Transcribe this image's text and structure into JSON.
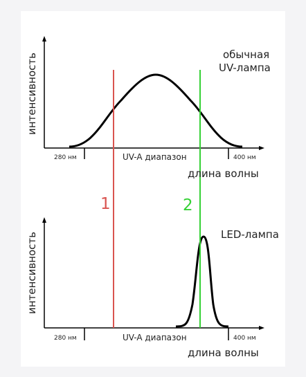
{
  "top_panel": {
    "ylabel": "интенсивность",
    "tick_left": "280 нм",
    "tick_right": "400 нм",
    "range_label": "UV-A диапазон",
    "xlabel": "длина волны",
    "lamp_label_line1": "обычная",
    "lamp_label_line2": "UV-лампа"
  },
  "bottom_panel": {
    "ylabel": "интенсивность",
    "tick_left": "280 нм",
    "tick_right": "400 нм",
    "range_label": "UV-A диапазон",
    "xlabel": "длина волны",
    "lamp_label": "LED-лампа"
  },
  "markers": {
    "line1_label": "1",
    "line2_label": "2",
    "line1_color": "#d9534f",
    "line2_color": "#35d135"
  },
  "colors": {
    "curve": "#000000",
    "axis": "#000000",
    "background": "#ffffff"
  }
}
